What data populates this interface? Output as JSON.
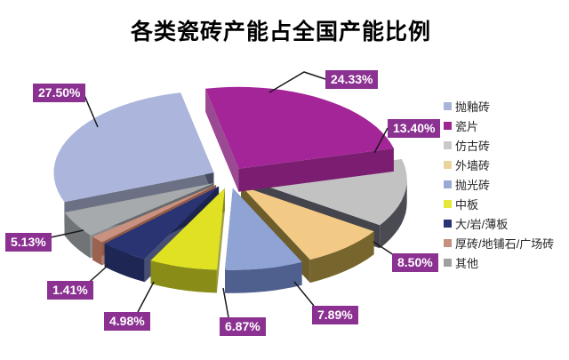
{
  "title": "各类瓷砖产能占全国产能比例",
  "colors": {
    "background": "#FFFFFF",
    "title_text": "#000000",
    "label_box_bg": "#8B3191",
    "label_text": "#FFFFFF",
    "leader_line": "#1A1A1A",
    "legend_text": "#262626"
  },
  "chart_data": {
    "type": "pie",
    "style": "3d-exploded",
    "title": "各类瓷砖产能占全国产能比例",
    "legend_position": "right",
    "start_angle_deg": -111,
    "slices": [
      {
        "name": "抛釉砖",
        "value": 27.5,
        "label": "27.50%",
        "color": "#ACB6DC",
        "side": "#4B5069",
        "legend_color": "#A9B4DA"
      },
      {
        "name": "瓷片",
        "value": 24.33,
        "label": "24.33%",
        "color": "#A32597",
        "side": "#86217B",
        "legend_color": "#9E2590"
      },
      {
        "name": "仿古砖",
        "value": 13.4,
        "label": "13.40%",
        "color": "#C2C2C2",
        "side": "#4A4A53",
        "legend_color": "#C9C9C9"
      },
      {
        "name": "外墙砖",
        "value": 8.5,
        "label": "8.50%",
        "color": "#F3CA85",
        "side": "#77652E",
        "legend_color": "#E9D49B"
      },
      {
        "name": "抛光砖",
        "value": 7.89,
        "label": "7.89%",
        "color": "#8FA3D5",
        "side": "#4F5F8E",
        "legend_color": "#9AAAD4"
      },
      {
        "name": "中板",
        "value": 6.87,
        "label": "6.87%",
        "color": "#DFE122",
        "side": "#8A8C18",
        "legend_color": "#E6E73B"
      },
      {
        "name": "大/岩/薄板",
        "value": 4.98,
        "label": "4.98%",
        "color": "#2B3473",
        "side": "#1E2754",
        "legend_color": "#2B3473"
      },
      {
        "name": "厚砖/地铺石/广场砖",
        "value": 1.41,
        "label": "1.41%",
        "color": "#C9917F",
        "side": "#9A624F",
        "legend_color": "#C59080"
      },
      {
        "name": "其他",
        "value": 5.13,
        "label": "5.13%",
        "color": "#A7AAAC",
        "side": "#707476",
        "legend_color": "#A0A0A0"
      }
    ]
  }
}
